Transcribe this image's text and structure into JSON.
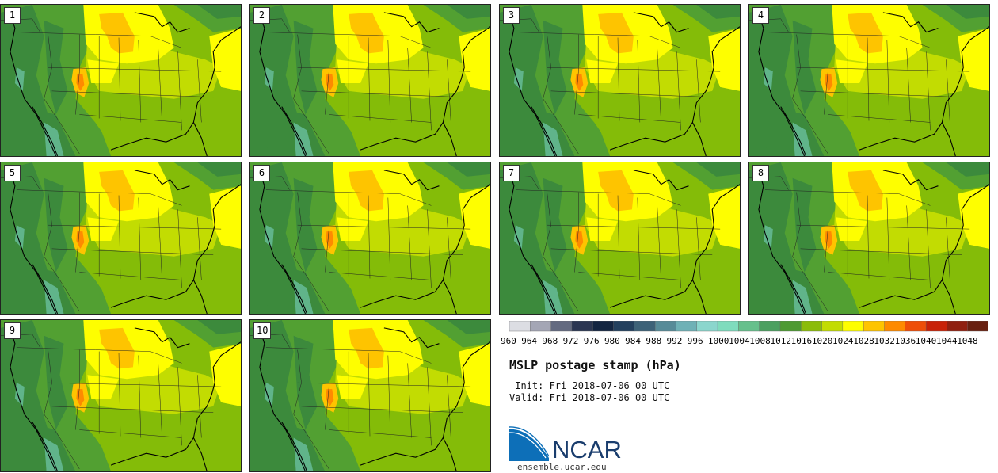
{
  "panels": [
    "1",
    "2",
    "3",
    "4",
    "5",
    "6",
    "7",
    "8",
    "9",
    "10"
  ],
  "colorbar": {
    "ticks": [
      "960",
      "964",
      "968",
      "972",
      "976",
      "980",
      "984",
      "988",
      "992",
      "996",
      "1000",
      "1004",
      "1008",
      "1012",
      "1016",
      "1020",
      "1024",
      "1028",
      "1032",
      "1036",
      "1040",
      "1044",
      "1048"
    ],
    "colors": [
      "#dcdde3",
      "#a4a6b5",
      "#636a80",
      "#2b3652",
      "#132541",
      "#23405e",
      "#3d6278",
      "#578b98",
      "#6fb1b6",
      "#8bd6cd",
      "#7fdcbd",
      "#66c08c",
      "#4ca060",
      "#4e9a32",
      "#8bbc0a",
      "#c2dc02",
      "#fefe00",
      "#fec400",
      "#fe8a00",
      "#ee4e08",
      "#c82208",
      "#902010",
      "#682010"
    ]
  },
  "map_colors": {
    "deep_green": "#3c8a3c",
    "green": "#52a032",
    "olive": "#84bc08",
    "light_olive": "#c2dc02",
    "yellow": "#fefe00",
    "orange": "#fec400",
    "red_orange": "#fe8a00",
    "teal": "#60b48a"
  },
  "title": "MSLP postage stamp (hPa)",
  "init": " Init: Fri 2018-07-06 00 UTC",
  "valid": "Valid: Fri 2018-07-06 00 UTC",
  "logo": {
    "name": "NCAR",
    "url": "ensemble.ucar.edu",
    "brand_blue": "#0d6fb8",
    "brand_navy": "#1a3d6d"
  }
}
